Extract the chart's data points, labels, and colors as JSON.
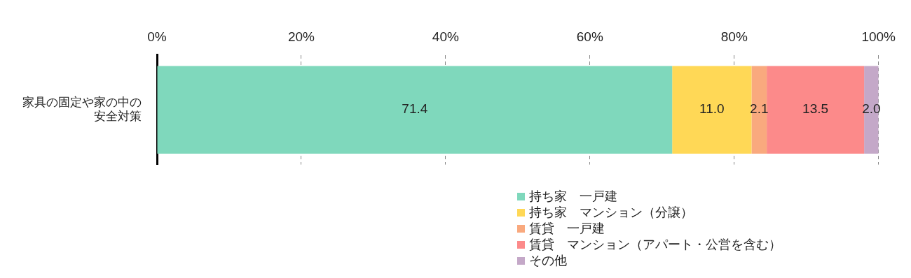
{
  "chart_data": {
    "type": "bar",
    "orientation": "horizontal",
    "stacked": true,
    "categories": [
      "家具の固定や家の中の安全対策"
    ],
    "series": [
      {
        "name": "持ち家　一戸建",
        "color": "#7fd8bc",
        "values": [
          71.4
        ],
        "value_labels": [
          "71.4"
        ]
      },
      {
        "name": "持ち家　マンション（分譲）",
        "color": "#ffd856",
        "values": [
          11.0
        ],
        "value_labels": [
          "11.0"
        ]
      },
      {
        "name": "賃貸　一戸建",
        "color": "#f9a97e",
        "values": [
          2.1
        ],
        "value_labels": [
          "2.1"
        ]
      },
      {
        "name": "賃貸　マンション（アパート・公営を含む）",
        "color": "#fc8a8a",
        "values": [
          13.5
        ],
        "value_labels": [
          "13.5"
        ]
      },
      {
        "name": "その他",
        "color": "#c4a8c8",
        "values": [
          2.0
        ],
        "value_labels": [
          "2.0"
        ]
      }
    ],
    "xlim": [
      0,
      100
    ],
    "xticks": [
      {
        "value": 0,
        "label": "0%"
      },
      {
        "value": 20,
        "label": "20%"
      },
      {
        "value": 40,
        "label": "40%"
      },
      {
        "value": 60,
        "label": "60%"
      },
      {
        "value": 80,
        "label": "80%"
      },
      {
        "value": 100,
        "label": "100%"
      }
    ],
    "grid": "x",
    "legend": "bottom"
  }
}
